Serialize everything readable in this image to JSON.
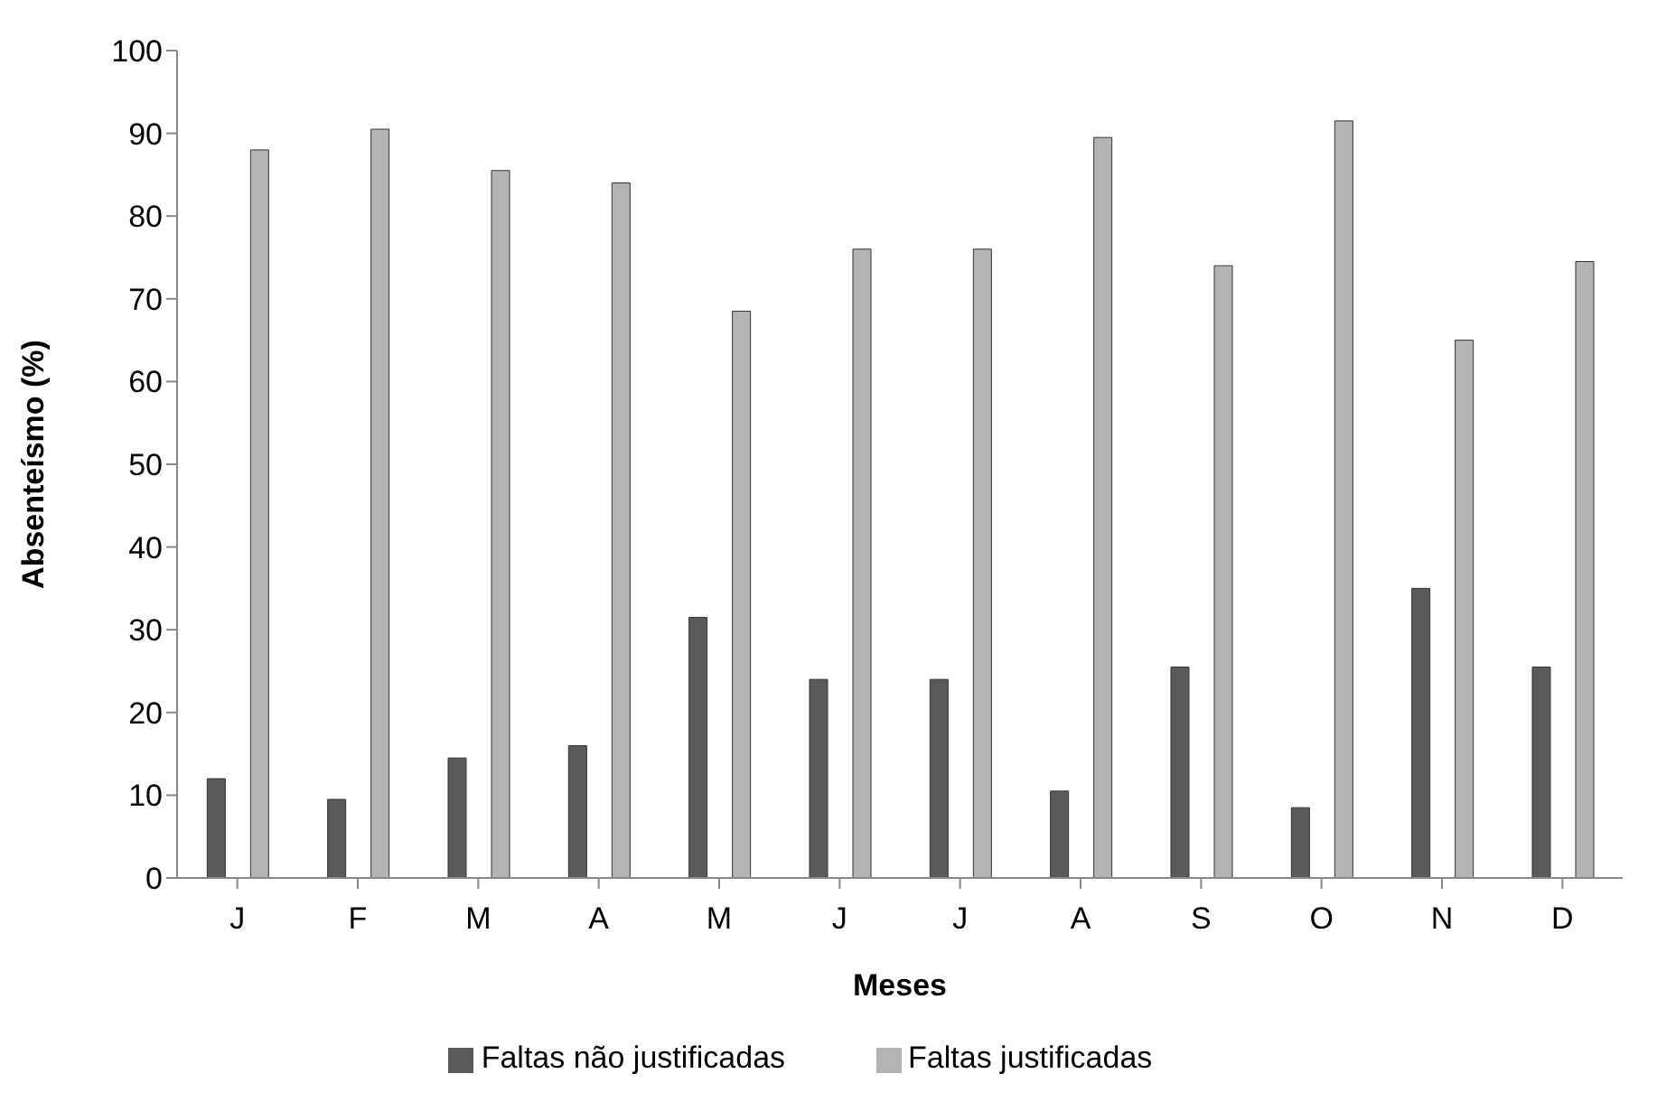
{
  "chart_data": {
    "type": "bar",
    "xlabel": "Meses",
    "ylabel": "Absenteísmo (%)",
    "categories": [
      "J",
      "F",
      "M",
      "A",
      "M",
      "J",
      "J",
      "A",
      "S",
      "O",
      "N",
      "D"
    ],
    "series": [
      {
        "name": "Faltas não justificadas",
        "color": "#5a5a5a",
        "values": [
          12,
          9.5,
          14.5,
          16,
          31.5,
          24,
          24,
          10.5,
          25.5,
          8.5,
          35,
          25.5
        ]
      },
      {
        "name": "Faltas justificadas",
        "color": "#b4b4b4",
        "values": [
          88,
          90.5,
          85.5,
          84,
          68.5,
          76,
          76,
          89.5,
          74,
          91.5,
          65,
          74.5
        ]
      }
    ],
    "ylim": [
      0,
      100
    ],
    "yticks": [
      0,
      10,
      20,
      30,
      40,
      50,
      60,
      70,
      80,
      90,
      100
    ],
    "grid": false,
    "legend": "bottom"
  }
}
